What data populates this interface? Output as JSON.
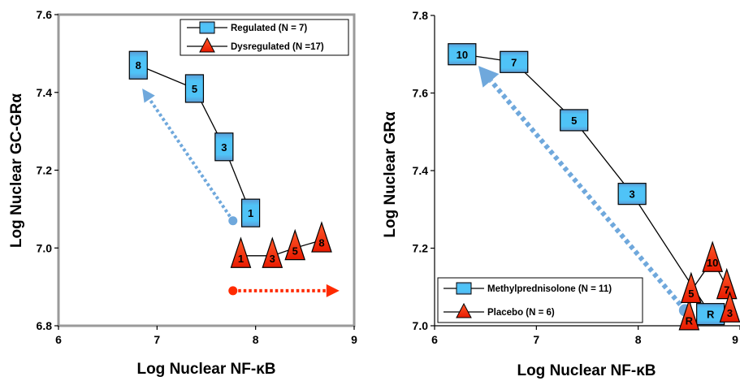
{
  "chart_data": [
    {
      "type": "line",
      "xlabel": "Log Nuclear NF-κB",
      "ylabel": "Log Nuclear GC-GRα",
      "xlim": [
        6,
        9
      ],
      "ylim": [
        6.8,
        7.6
      ],
      "x_ticks": [
        "6",
        "7",
        "8",
        "9"
      ],
      "y_ticks": [
        "6.8",
        "7.0",
        "7.2",
        "7.4",
        "7.6"
      ],
      "legend": "top-right",
      "series": [
        {
          "name": "Regulated (N = 7)",
          "marker": "square",
          "color": "#4fc3f7",
          "points": [
            {
              "x": 6.81,
              "y": 7.47,
              "label": "8"
            },
            {
              "x": 7.38,
              "y": 7.41,
              "label": "5"
            },
            {
              "x": 7.68,
              "y": 7.26,
              "label": "3"
            },
            {
              "x": 7.95,
              "y": 7.09,
              "label": "1"
            }
          ]
        },
        {
          "name": "Dysregulated (N =17)",
          "marker": "triangle",
          "color": "#ff2a00",
          "points": [
            {
              "x": 7.85,
              "y": 6.98,
              "label": "1"
            },
            {
              "x": 8.17,
              "y": 6.98,
              "label": "3"
            },
            {
              "x": 8.4,
              "y": 7.0,
              "label": "5"
            },
            {
              "x": 8.67,
              "y": 7.02,
              "label": "8"
            }
          ]
        }
      ],
      "arrows": [
        {
          "color": "#6fa8dc",
          "from": [
            7.77,
            7.07
          ],
          "to": [
            6.85,
            7.41
          ]
        },
        {
          "color": "#ff2a00",
          "from": [
            7.77,
            6.89
          ],
          "to": [
            8.85,
            6.89
          ]
        }
      ]
    },
    {
      "type": "line",
      "xlabel": "Log Nuclear NF-κB",
      "ylabel": "Log Nuclear GRα",
      "xlim": [
        6,
        9
      ],
      "ylim": [
        7.0,
        7.8
      ],
      "x_ticks": [
        "6",
        "7",
        "8",
        "9"
      ],
      "y_ticks": [
        "7.0",
        "7.2",
        "7.4",
        "7.6",
        "7.8"
      ],
      "legend": "bottom-left",
      "series": [
        {
          "name": "Methylprednisolone (N = 11)",
          "marker": "square",
          "color": "#4fc3f7",
          "points": [
            {
              "x": 6.27,
              "y": 7.7,
              "label": "10"
            },
            {
              "x": 6.78,
              "y": 7.68,
              "label": "7"
            },
            {
              "x": 7.37,
              "y": 7.53,
              "label": "5"
            },
            {
              "x": 7.94,
              "y": 7.34,
              "label": "3"
            },
            {
              "x": 8.71,
              "y": 7.03,
              "label": "R"
            }
          ]
        },
        {
          "name": "Placebo (N = 6)",
          "marker": "triangle",
          "color": "#ff2a00",
          "points": [
            {
              "x": 8.5,
              "y": 7.02,
              "label": "R"
            },
            {
              "x": 8.52,
              "y": 7.09,
              "label": "5"
            },
            {
              "x": 8.73,
              "y": 7.17,
              "label": "10"
            },
            {
              "x": 8.87,
              "y": 7.1,
              "label": "7"
            },
            {
              "x": 8.9,
              "y": 7.04,
              "label": "3"
            }
          ],
          "segments": [
            [
              "R",
              "5"
            ],
            [
              "5",
              "10"
            ],
            [
              "10",
              "7"
            ],
            [
              "7",
              "3"
            ]
          ]
        }
      ],
      "arrows": [
        {
          "color": "#6fa8dc",
          "from": [
            8.46,
            7.04
          ],
          "to": [
            6.43,
            7.67
          ]
        }
      ]
    }
  ]
}
